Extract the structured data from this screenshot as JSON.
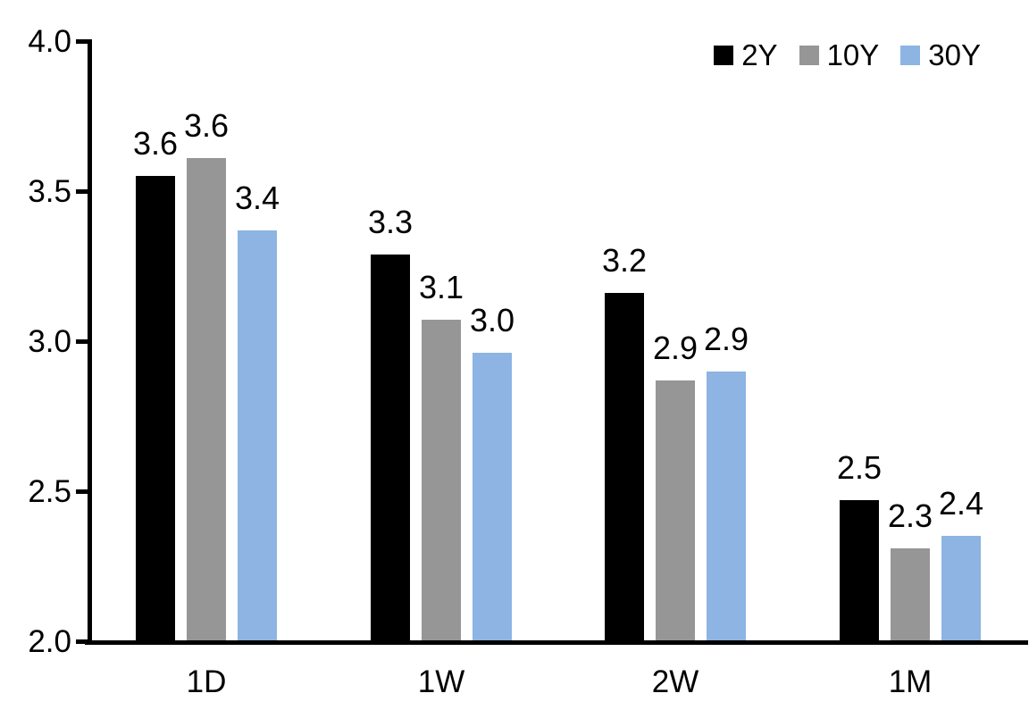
{
  "chart_data": {
    "type": "bar",
    "title": "",
    "xlabel": "",
    "ylabel": "",
    "categories": [
      "1D",
      "1W",
      "2W",
      "1M"
    ],
    "series": [
      {
        "name": "2Y",
        "color": "#000000",
        "values": [
          3.55,
          3.29,
          3.16,
          2.47
        ],
        "labels": [
          "3.6",
          "3.3",
          "3.2",
          "2.5"
        ]
      },
      {
        "name": "10Y",
        "color": "#969696",
        "values": [
          3.61,
          3.07,
          2.87,
          2.31
        ],
        "labels": [
          "3.6",
          "3.1",
          "2.9",
          "2.3"
        ]
      },
      {
        "name": "30Y",
        "color": "#8DB4E2",
        "values": [
          3.37,
          2.96,
          2.9,
          2.35
        ],
        "labels": [
          "3.4",
          "3.0",
          "2.9",
          "2.4"
        ]
      }
    ],
    "ylim": [
      2.0,
      4.0
    ],
    "yticks": [
      "4.0",
      "3.5",
      "3.0",
      "2.5",
      "2.0"
    ],
    "grid": false,
    "legend_position": "top-right",
    "data_labels": true,
    "axis_color": "#000000",
    "background_color": "#ffffff"
  }
}
